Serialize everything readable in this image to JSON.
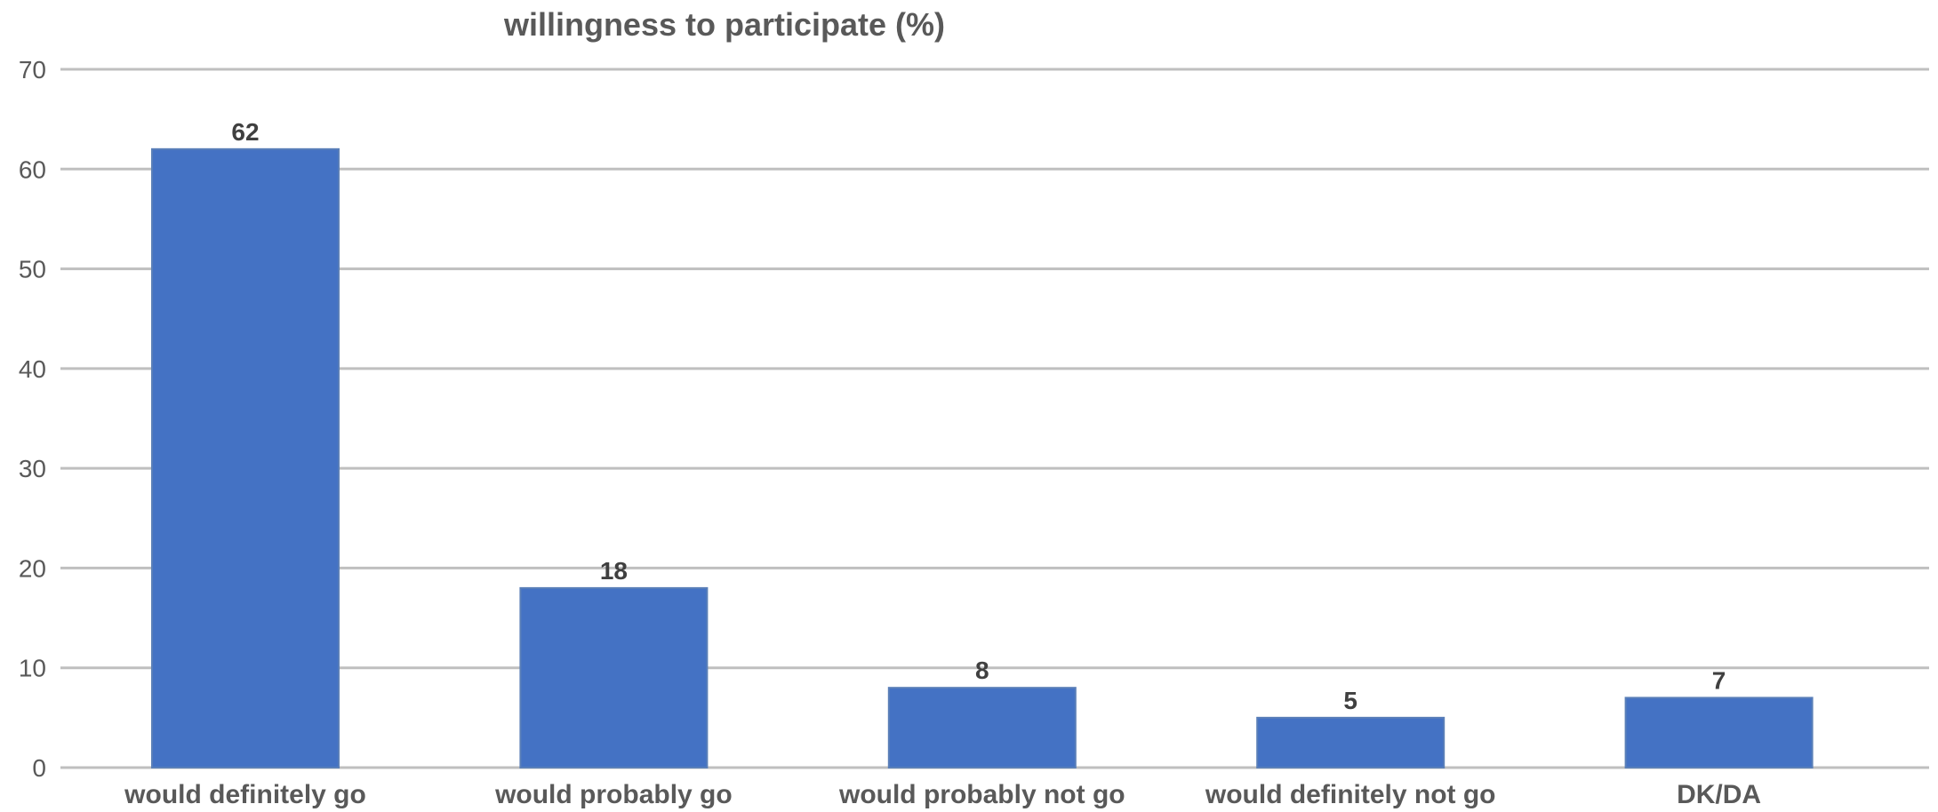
{
  "chart_data": {
    "type": "bar",
    "title": "willingness to participate (%)",
    "xlabel": "",
    "ylabel": "",
    "categories": [
      "would definitely go",
      "would probably go",
      "would probably not go",
      "would definitely not go",
      "DK/DA"
    ],
    "values": [
      62,
      18,
      8,
      5,
      7
    ],
    "ylim": [
      0,
      70
    ],
    "yticks": [
      0,
      10,
      20,
      30,
      40,
      50,
      60,
      70
    ],
    "grid": true,
    "legend": "none",
    "data_labels": true,
    "bar_color": "#4472c4"
  }
}
